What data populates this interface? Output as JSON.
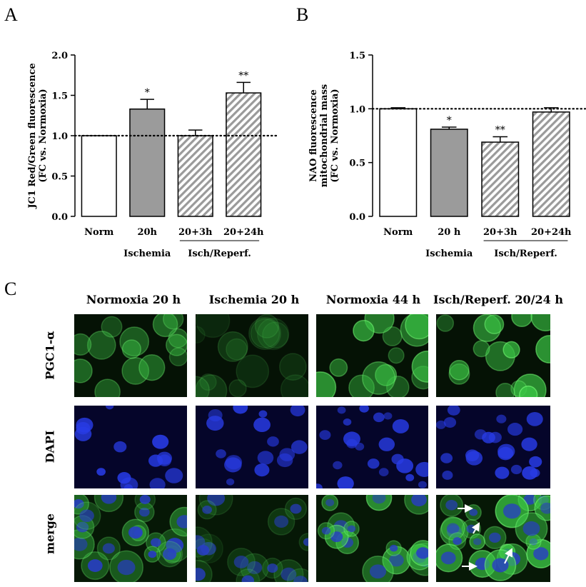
{
  "panels": {
    "a": "A",
    "b": "B",
    "c": "C"
  },
  "chart_data": [
    {
      "type": "bar",
      "categories": [
        "Norm",
        "20h",
        "20+3h",
        "20+24h"
      ],
      "values": [
        1.0,
        1.33,
        1.0,
        1.53
      ],
      "errors": [
        0.0,
        0.12,
        0.07,
        0.13
      ],
      "significance": [
        "",
        "*",
        "",
        "**"
      ],
      "ylabel": "JC1 Red/Green fluorescence (FC vs. Normoxia)",
      "ylabel_lines": [
        "JC1 Red/Green fluorescence",
        "(FC vs. Normoxia)"
      ],
      "ylim": [
        0,
        2.0
      ],
      "yticks": [
        "0.0",
        "0.5",
        "1.0",
        "1.5",
        "2.0"
      ],
      "ytick_values": [
        0,
        0.5,
        1.0,
        1.5,
        2.0
      ],
      "reference_line": 1.0,
      "groups": [
        {
          "label": "Ischemia",
          "from": 1,
          "to": 1
        },
        {
          "label": "Isch/Reperf.",
          "from": 2,
          "to": 3
        }
      ],
      "bar_styles": [
        "white",
        "gray",
        "hatched",
        "hatched"
      ]
    },
    {
      "type": "bar",
      "categories": [
        "Norm",
        "20 h",
        "20+3h",
        "20+24h"
      ],
      "values": [
        1.0,
        0.81,
        0.69,
        0.97
      ],
      "errors": [
        0.01,
        0.02,
        0.05,
        0.04
      ],
      "significance": [
        "",
        "*",
        "**",
        ""
      ],
      "ylabel": "NAO fluorescence mitochondrial mass (FC vs. Normoxia)",
      "ylabel_lines": [
        "NAO fluorescence",
        "mitochondrial mass",
        "(FC vs. Normoxia)"
      ],
      "ylim": [
        0,
        1.5
      ],
      "yticks": [
        "0.0",
        "0.5",
        "1.0",
        "1.5"
      ],
      "ytick_values": [
        0,
        0.5,
        1.0,
        1.5
      ],
      "reference_line": 1.0,
      "groups": [
        {
          "label": "Ischemia",
          "from": 1,
          "to": 1
        },
        {
          "label": "Isch/Reperf.",
          "from": 2,
          "to": 3
        }
      ],
      "bar_styles": [
        "white",
        "gray",
        "hatched",
        "hatched"
      ]
    }
  ],
  "micrographs": {
    "columns": [
      "Normoxia 20 h",
      "Ischemia 20 h",
      "Normoxia 44 h",
      "Isch/Reperf. 20/24 h"
    ],
    "rows": [
      "PGC1-α",
      "DAPI",
      "merge"
    ]
  }
}
